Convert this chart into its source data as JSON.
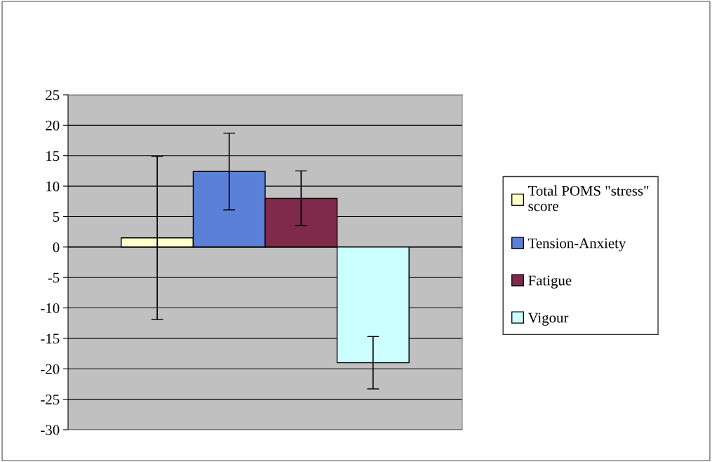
{
  "chart_data": {
    "type": "bar",
    "categories": [
      null
    ],
    "series": [
      {
        "name": "Total POMS \"stress\"\nscore",
        "color": "#ffffcc",
        "values": [
          1.5
        ],
        "errors": [
          13.4
        ]
      },
      {
        "name": "Tension-Anxiety",
        "color": "#5b80d8",
        "values": [
          12.4
        ],
        "errors": [
          6.3
        ]
      },
      {
        "name": "Fatigue",
        "color": "#7f2a4a",
        "values": [
          8.0
        ],
        "errors": [
          4.5
        ]
      },
      {
        "name": "Vigour",
        "color": "#ccffff",
        "values": [
          -19.0
        ],
        "errors": [
          4.3
        ]
      }
    ],
    "ylim": [
      -30,
      25
    ],
    "yticks": [
      -30,
      -25,
      -20,
      -15,
      -10,
      -5,
      0,
      5,
      10,
      15,
      20,
      25
    ],
    "grid": "y",
    "legend": "right"
  }
}
